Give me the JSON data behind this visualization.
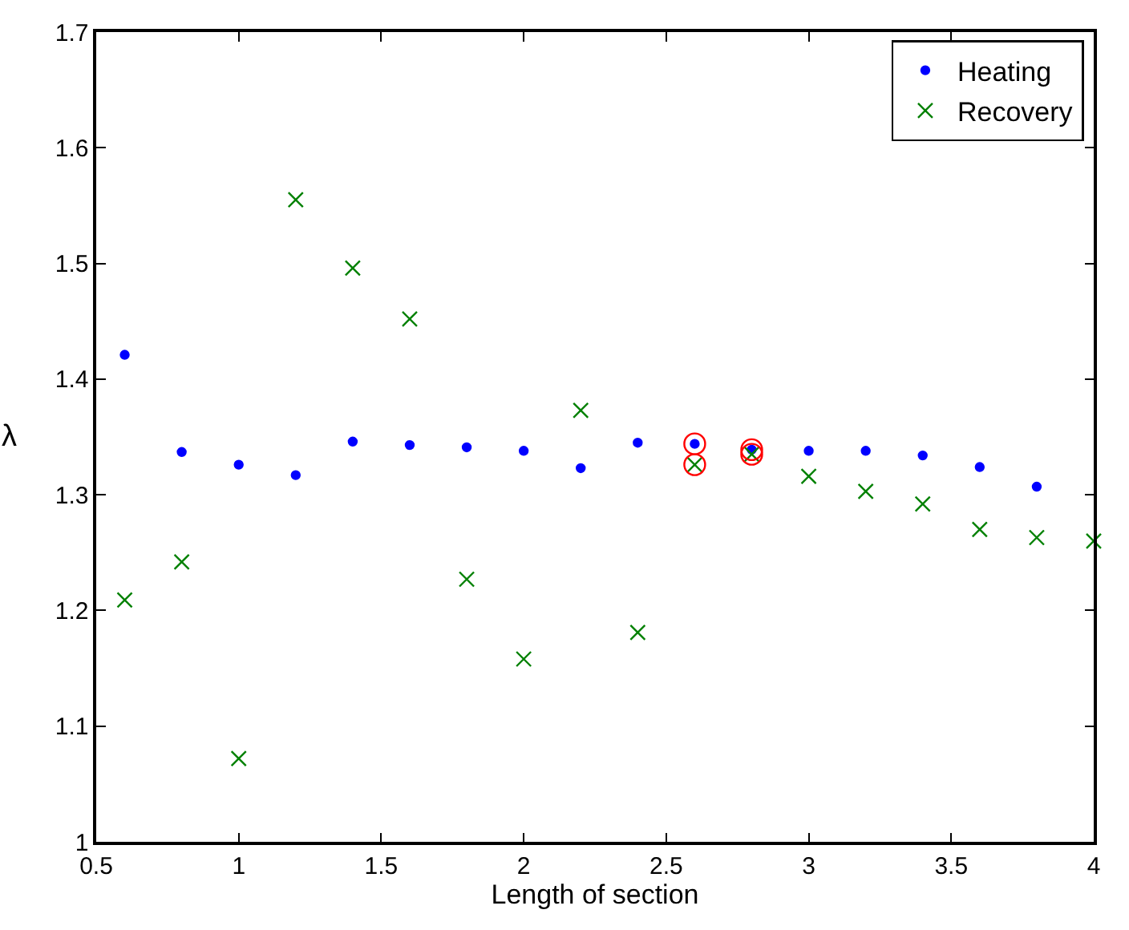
{
  "chart_data": {
    "type": "scatter",
    "xlabel": "Length of section",
    "ylabel": "λ",
    "x": [
      0.6,
      0.8,
      1.0,
      1.2,
      1.4,
      1.6,
      1.8,
      2.0,
      2.2,
      2.4,
      2.6,
      2.8,
      3.0,
      3.2,
      3.4,
      3.6,
      3.8
    ],
    "series": [
      {
        "name": "Heating",
        "color": "#0000ff",
        "marker": "circle",
        "values": [
          1.421,
          1.337,
          1.326,
          1.317,
          1.346,
          1.343,
          1.341,
          1.338,
          1.323,
          1.345,
          1.344,
          1.339,
          1.338,
          1.338,
          1.334,
          1.324,
          1.307
        ]
      },
      {
        "name": "Recovery",
        "color": "#008000",
        "marker": "cross",
        "x": [
          0.6,
          0.8,
          1.0,
          1.2,
          1.4,
          1.6,
          1.8,
          2.0,
          2.2,
          2.4,
          2.6,
          2.8,
          3.0,
          3.2,
          3.4,
          3.6,
          3.8,
          4.0
        ],
        "values": [
          1.209,
          1.242,
          1.072,
          1.555,
          1.496,
          1.452,
          1.227,
          1.158,
          1.373,
          1.181,
          1.326,
          1.335,
          1.316,
          1.303,
          1.292,
          1.27,
          1.263,
          1.26
        ]
      },
      {
        "color": "#ff0000",
        "marker": "open circle",
        "x": [
          2.6,
          2.6,
          2.8,
          2.8
        ],
        "values": [
          1.344,
          1.326,
          1.339,
          1.335
        ]
      }
    ],
    "xlim": [
      0.5,
      4
    ],
    "xticks": [
      0.5,
      1,
      1.5,
      2,
      2.5,
      3,
      3.5,
      4
    ],
    "ylim": [
      1,
      1.7
    ],
    "yticks": [
      1,
      1.1,
      1.2,
      1.3,
      1.4,
      1.5,
      1.6,
      1.7
    ],
    "legend": "top right"
  }
}
